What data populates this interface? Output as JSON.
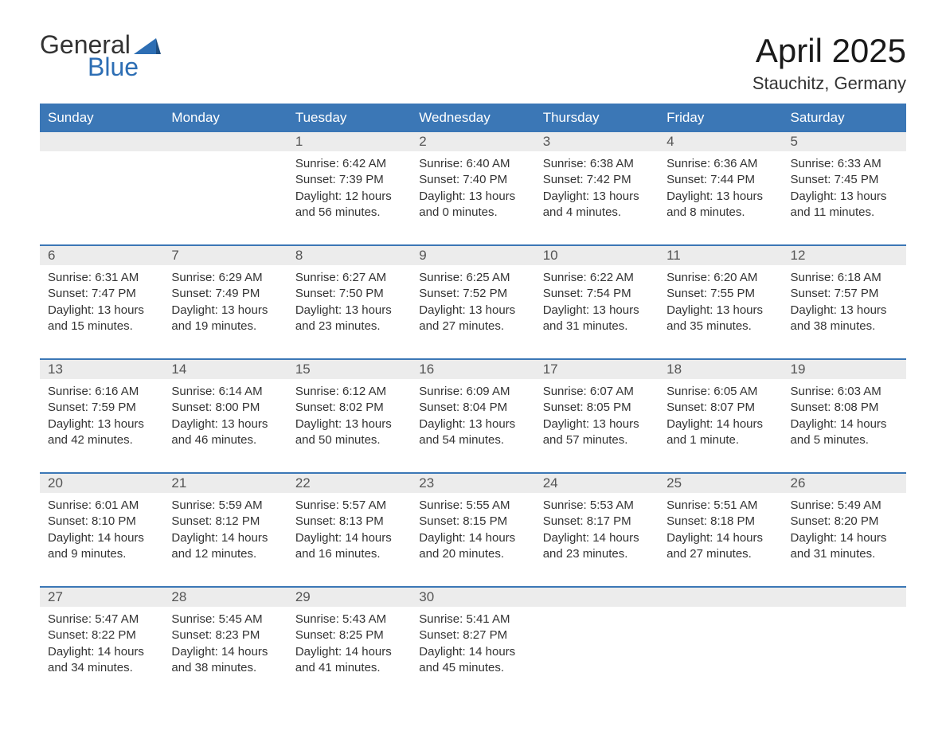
{
  "logo": {
    "word1": "General",
    "word2": "Blue",
    "triangle_color": "#2d6eb4"
  },
  "title": "April 2025",
  "location": "Stauchitz, Germany",
  "colors": {
    "header_bg": "#3b77b6",
    "header_text": "#ffffff",
    "daynum_bg": "#ececec",
    "body_bg": "#ffffff",
    "text": "#333333",
    "sep": "#3b77b6"
  },
  "day_headers": [
    "Sunday",
    "Monday",
    "Tuesday",
    "Wednesday",
    "Thursday",
    "Friday",
    "Saturday"
  ],
  "weeks": [
    [
      {
        "num": "",
        "body": ""
      },
      {
        "num": "",
        "body": ""
      },
      {
        "num": "1",
        "body": "Sunrise: 6:42 AM\nSunset: 7:39 PM\nDaylight: 12 hours and 56 minutes."
      },
      {
        "num": "2",
        "body": "Sunrise: 6:40 AM\nSunset: 7:40 PM\nDaylight: 13 hours and 0 minutes."
      },
      {
        "num": "3",
        "body": "Sunrise: 6:38 AM\nSunset: 7:42 PM\nDaylight: 13 hours and 4 minutes."
      },
      {
        "num": "4",
        "body": "Sunrise: 6:36 AM\nSunset: 7:44 PM\nDaylight: 13 hours and 8 minutes."
      },
      {
        "num": "5",
        "body": "Sunrise: 6:33 AM\nSunset: 7:45 PM\nDaylight: 13 hours and 11 minutes."
      }
    ],
    [
      {
        "num": "6",
        "body": "Sunrise: 6:31 AM\nSunset: 7:47 PM\nDaylight: 13 hours and 15 minutes."
      },
      {
        "num": "7",
        "body": "Sunrise: 6:29 AM\nSunset: 7:49 PM\nDaylight: 13 hours and 19 minutes."
      },
      {
        "num": "8",
        "body": "Sunrise: 6:27 AM\nSunset: 7:50 PM\nDaylight: 13 hours and 23 minutes."
      },
      {
        "num": "9",
        "body": "Sunrise: 6:25 AM\nSunset: 7:52 PM\nDaylight: 13 hours and 27 minutes."
      },
      {
        "num": "10",
        "body": "Sunrise: 6:22 AM\nSunset: 7:54 PM\nDaylight: 13 hours and 31 minutes."
      },
      {
        "num": "11",
        "body": "Sunrise: 6:20 AM\nSunset: 7:55 PM\nDaylight: 13 hours and 35 minutes."
      },
      {
        "num": "12",
        "body": "Sunrise: 6:18 AM\nSunset: 7:57 PM\nDaylight: 13 hours and 38 minutes."
      }
    ],
    [
      {
        "num": "13",
        "body": "Sunrise: 6:16 AM\nSunset: 7:59 PM\nDaylight: 13 hours and 42 minutes."
      },
      {
        "num": "14",
        "body": "Sunrise: 6:14 AM\nSunset: 8:00 PM\nDaylight: 13 hours and 46 minutes."
      },
      {
        "num": "15",
        "body": "Sunrise: 6:12 AM\nSunset: 8:02 PM\nDaylight: 13 hours and 50 minutes."
      },
      {
        "num": "16",
        "body": "Sunrise: 6:09 AM\nSunset: 8:04 PM\nDaylight: 13 hours and 54 minutes."
      },
      {
        "num": "17",
        "body": "Sunrise: 6:07 AM\nSunset: 8:05 PM\nDaylight: 13 hours and 57 minutes."
      },
      {
        "num": "18",
        "body": "Sunrise: 6:05 AM\nSunset: 8:07 PM\nDaylight: 14 hours and 1 minute."
      },
      {
        "num": "19",
        "body": "Sunrise: 6:03 AM\nSunset: 8:08 PM\nDaylight: 14 hours and 5 minutes."
      }
    ],
    [
      {
        "num": "20",
        "body": "Sunrise: 6:01 AM\nSunset: 8:10 PM\nDaylight: 14 hours and 9 minutes."
      },
      {
        "num": "21",
        "body": "Sunrise: 5:59 AM\nSunset: 8:12 PM\nDaylight: 14 hours and 12 minutes."
      },
      {
        "num": "22",
        "body": "Sunrise: 5:57 AM\nSunset: 8:13 PM\nDaylight: 14 hours and 16 minutes."
      },
      {
        "num": "23",
        "body": "Sunrise: 5:55 AM\nSunset: 8:15 PM\nDaylight: 14 hours and 20 minutes."
      },
      {
        "num": "24",
        "body": "Sunrise: 5:53 AM\nSunset: 8:17 PM\nDaylight: 14 hours and 23 minutes."
      },
      {
        "num": "25",
        "body": "Sunrise: 5:51 AM\nSunset: 8:18 PM\nDaylight: 14 hours and 27 minutes."
      },
      {
        "num": "26",
        "body": "Sunrise: 5:49 AM\nSunset: 8:20 PM\nDaylight: 14 hours and 31 minutes."
      }
    ],
    [
      {
        "num": "27",
        "body": "Sunrise: 5:47 AM\nSunset: 8:22 PM\nDaylight: 14 hours and 34 minutes."
      },
      {
        "num": "28",
        "body": "Sunrise: 5:45 AM\nSunset: 8:23 PM\nDaylight: 14 hours and 38 minutes."
      },
      {
        "num": "29",
        "body": "Sunrise: 5:43 AM\nSunset: 8:25 PM\nDaylight: 14 hours and 41 minutes."
      },
      {
        "num": "30",
        "body": "Sunrise: 5:41 AM\nSunset: 8:27 PM\nDaylight: 14 hours and 45 minutes."
      },
      {
        "num": "",
        "body": ""
      },
      {
        "num": "",
        "body": ""
      },
      {
        "num": "",
        "body": ""
      }
    ]
  ]
}
